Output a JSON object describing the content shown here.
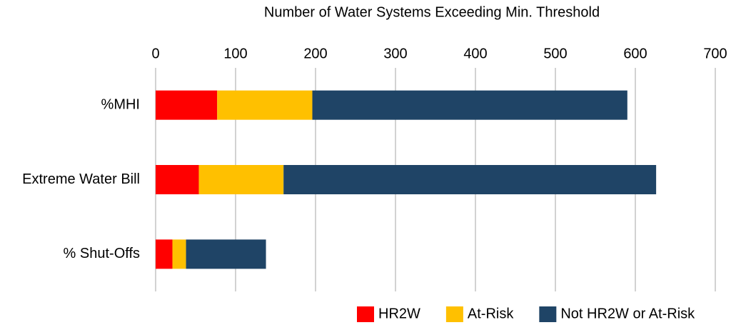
{
  "chart_data": {
    "type": "bar",
    "orientation": "horizontal",
    "stacked": true,
    "title": "Number of Water Systems Exceeding Min. Threshold",
    "categories": [
      "%MHI",
      "Extreme Water Bill",
      "% Shut-Offs"
    ],
    "series": [
      {
        "name": "HR2W",
        "color": "#ff0000",
        "values": [
          77,
          54,
          21
        ]
      },
      {
        "name": "At-Risk",
        "color": "#ffc000",
        "values": [
          119,
          106,
          17
        ]
      },
      {
        "name": "Not HR2W or At-Risk",
        "color": "#1f4466",
        "values": [
          394,
          466,
          100
        ]
      }
    ],
    "xlim": [
      0,
      700
    ],
    "xticks": [
      0,
      100,
      200,
      300,
      400,
      500,
      600,
      700
    ],
    "grid": true,
    "legend": "bottom-right"
  }
}
